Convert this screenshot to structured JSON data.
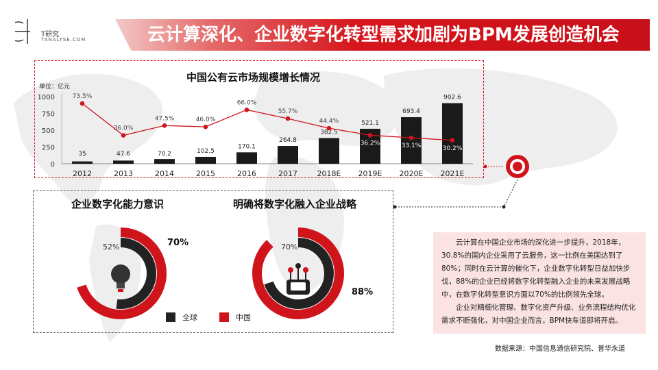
{
  "header": {
    "logo_cn": "T研究",
    "logo_en": "TANALYSE.COM",
    "title": "云计算深化、企业数字化转型需求加剧为BPM发展创造机会"
  },
  "colors": {
    "accent": "#d0141c",
    "dark": "#222222",
    "light_bg": "#fbe3e3"
  },
  "chart_data": [
    {
      "type": "bar",
      "title": "中国公有云市场规模增长情况",
      "unit_label": "单位：亿元",
      "categories": [
        "2012",
        "2013",
        "2014",
        "2015",
        "2016",
        "2017",
        "2018E",
        "2019E",
        "2020E",
        "2021E"
      ],
      "values": [
        35,
        47.6,
        70.2,
        102.5,
        170.1,
        264.8,
        382.5,
        521.1,
        693.4,
        902.6
      ],
      "value_labels": [
        "35",
        "47.6",
        "70.2",
        "102.5",
        "170.1",
        "264.8",
        "382.5",
        "521.1",
        "693.4",
        "902.6"
      ],
      "yticks": [
        "0",
        "250",
        "500",
        "750",
        "1000"
      ],
      "ylim": [
        0,
        1000
      ],
      "growth_line": {
        "values": [
          73.5,
          36.0,
          47.5,
          46.0,
          66.0,
          55.7,
          44.4,
          36.2,
          33.1,
          30.2
        ],
        "labels": [
          "73.5%",
          "36.0%",
          "47.5%",
          "46.0%",
          "66.0%",
          "55.7%",
          "44.4%",
          "36.2%",
          "33.1%",
          "30.2%"
        ]
      }
    },
    {
      "type": "pie",
      "title": "企业数字化能力意识",
      "series": [
        {
          "name": "全球",
          "value": 52,
          "label": "52%"
        },
        {
          "name": "中国",
          "value": 70,
          "label": "70%"
        }
      ]
    },
    {
      "type": "pie",
      "title": "明确将数字化融入企业战略",
      "series": [
        {
          "name": "全球",
          "value": 70,
          "label": "70%"
        },
        {
          "name": "中国",
          "value": 88,
          "label": "88%"
        }
      ]
    }
  ],
  "legend": {
    "global": "全球",
    "china": "中国"
  },
  "description": {
    "p1": "云计算在中国企业市场的深化进一步提升，2018年，30.8%的国内企业采用了云服务，这一比例在美国达到了80%；同时在云计算的催化下，企业数字化转型日益加快步伐，88%的企业已经将数字化转型融入企业的未来发展战略中，在数字化转型意识方面以70%的比例领先全球。",
    "p2": "企业对精细化管理、数字化资产升级、业务流程结构优化需求不断强化，对中国企业而言，BPM快车道即将开启。"
  },
  "source": "数据来源：中国信息通信研究院、普华永道"
}
